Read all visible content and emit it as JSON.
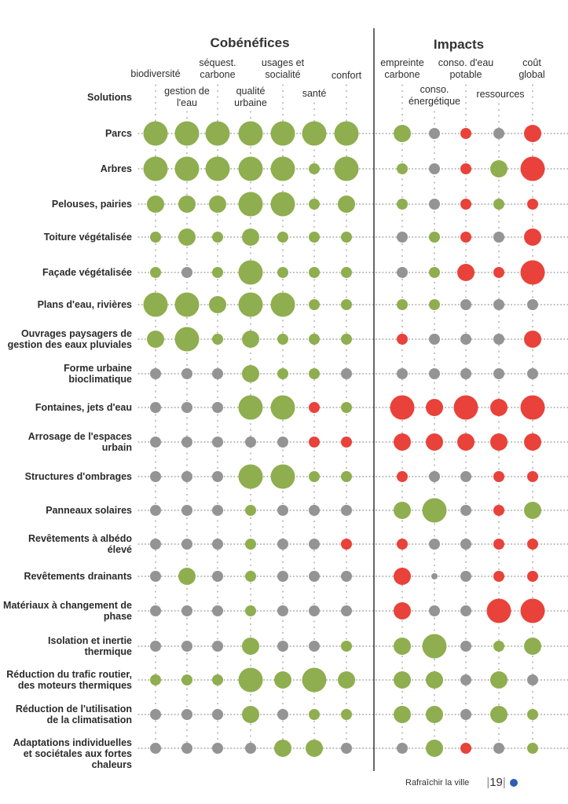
{
  "chart_data": {
    "type": "bubble-matrix",
    "title_left": "Cobénéfices",
    "title_right": "Impacts",
    "row_header": "Solutions",
    "encoding": {
      "color": {
        "g": "positive (green)",
        "n": "neutral (gray)",
        "r": "negative (red)"
      },
      "size": {
        "0": "neutral",
        "1": "low",
        "2": "medium",
        "3": "high"
      }
    },
    "colors": {
      "g": "#8fae4f",
      "n": "#949494",
      "r": "#e8423a"
    },
    "cobenefices_columns": [
      [
        "biodiversité"
      ],
      [
        "gestion de",
        "l'eau"
      ],
      [
        "séquest.",
        "carbone"
      ],
      [
        "qualité",
        "urbaine"
      ],
      [
        "usages et",
        "socialité"
      ],
      [
        "santé"
      ],
      [
        "confort"
      ]
    ],
    "impacts_columns": [
      [
        "empreinte",
        "carbone"
      ],
      [
        "conso.",
        "énergétique"
      ],
      [
        "conso. d'eau",
        "potable"
      ],
      [
        "ressources"
      ],
      [
        "coût",
        "global"
      ]
    ],
    "rows": [
      {
        "label": [
          "Parcs"
        ],
        "cob": [
          [
            "g",
            3
          ],
          [
            "g",
            3
          ],
          [
            "g",
            3
          ],
          [
            "g",
            3
          ],
          [
            "g",
            3
          ],
          [
            "g",
            3
          ],
          [
            "g",
            3
          ]
        ],
        "imp": [
          [
            "g",
            2
          ],
          [
            "n",
            1
          ],
          [
            "r",
            1
          ],
          [
            "n",
            1
          ],
          [
            "r",
            2
          ]
        ]
      },
      {
        "label": [
          "Arbres"
        ],
        "cob": [
          [
            "g",
            3
          ],
          [
            "g",
            3
          ],
          [
            "g",
            3
          ],
          [
            "g",
            3
          ],
          [
            "g",
            3
          ],
          [
            "g",
            1
          ],
          [
            "g",
            3
          ]
        ],
        "imp": [
          [
            "g",
            1
          ],
          [
            "n",
            1
          ],
          [
            "r",
            1
          ],
          [
            "g",
            2
          ],
          [
            "r",
            3
          ]
        ]
      },
      {
        "label": [
          "Pelouses, pairies"
        ],
        "cob": [
          [
            "g",
            2
          ],
          [
            "g",
            2
          ],
          [
            "g",
            2
          ],
          [
            "g",
            3
          ],
          [
            "g",
            3
          ],
          [
            "g",
            1
          ],
          [
            "g",
            2
          ]
        ],
        "imp": [
          [
            "g",
            1
          ],
          [
            "n",
            1
          ],
          [
            "r",
            1
          ],
          [
            "g",
            1
          ],
          [
            "r",
            1
          ]
        ]
      },
      {
        "label": [
          "Toiture végétalisée"
        ],
        "cob": [
          [
            "g",
            1
          ],
          [
            "g",
            2
          ],
          [
            "g",
            1
          ],
          [
            "g",
            2
          ],
          [
            "g",
            1
          ],
          [
            "g",
            1
          ],
          [
            "g",
            1
          ]
        ],
        "imp": [
          [
            "n",
            1
          ],
          [
            "g",
            1
          ],
          [
            "r",
            1
          ],
          [
            "n",
            1
          ],
          [
            "r",
            2
          ]
        ]
      },
      {
        "label": [
          "Façade végétalisée"
        ],
        "cob": [
          [
            "g",
            1
          ],
          [
            "n",
            1
          ],
          [
            "g",
            1
          ],
          [
            "g",
            3
          ],
          [
            "g",
            1
          ],
          [
            "g",
            1
          ],
          [
            "g",
            1
          ]
        ],
        "imp": [
          [
            "n",
            1
          ],
          [
            "g",
            1
          ],
          [
            "r",
            2
          ],
          [
            "r",
            1
          ],
          [
            "r",
            3
          ]
        ]
      },
      {
        "label": [
          "Plans d'eau, rivières"
        ],
        "cob": [
          [
            "g",
            3
          ],
          [
            "g",
            3
          ],
          [
            "g",
            2
          ],
          [
            "g",
            3
          ],
          [
            "g",
            3
          ],
          [
            "g",
            1
          ],
          [
            "g",
            1
          ]
        ],
        "imp": [
          [
            "g",
            1
          ],
          [
            "g",
            1
          ],
          [
            "n",
            1
          ],
          [
            "n",
            1
          ],
          [
            "n",
            1
          ]
        ]
      },
      {
        "label": [
          "Ouvrages paysagers de",
          "gestion des eaux pluviales"
        ],
        "cob": [
          [
            "g",
            2
          ],
          [
            "g",
            3
          ],
          [
            "g",
            1
          ],
          [
            "g",
            2
          ],
          [
            "g",
            1
          ],
          [
            "g",
            1
          ],
          [
            "g",
            1
          ]
        ],
        "imp": [
          [
            "r",
            1
          ],
          [
            "n",
            1
          ],
          [
            "n",
            1
          ],
          [
            "n",
            1
          ],
          [
            "r",
            2
          ]
        ]
      },
      {
        "label": [
          "Forme urbaine",
          "bioclimatique"
        ],
        "cob": [
          [
            "n",
            1
          ],
          [
            "n",
            1
          ],
          [
            "n",
            1
          ],
          [
            "g",
            2
          ],
          [
            "g",
            1
          ],
          [
            "g",
            1
          ],
          [
            "n",
            1
          ]
        ],
        "imp": [
          [
            "n",
            1
          ],
          [
            "n",
            1
          ],
          [
            "n",
            1
          ],
          [
            "n",
            1
          ],
          [
            "n",
            1
          ]
        ]
      },
      {
        "label": [
          "Fontaines, jets d'eau"
        ],
        "cob": [
          [
            "n",
            1
          ],
          [
            "n",
            1
          ],
          [
            "n",
            1
          ],
          [
            "g",
            3
          ],
          [
            "g",
            3
          ],
          [
            "r",
            1
          ],
          [
            "g",
            1
          ]
        ],
        "imp": [
          [
            "r",
            3
          ],
          [
            "r",
            2
          ],
          [
            "r",
            3
          ],
          [
            "r",
            2
          ],
          [
            "r",
            3
          ]
        ]
      },
      {
        "label": [
          "Arrosage de l'espaces",
          "urbain"
        ],
        "cob": [
          [
            "n",
            1
          ],
          [
            "n",
            1
          ],
          [
            "n",
            1
          ],
          [
            "n",
            1
          ],
          [
            "n",
            1
          ],
          [
            "r",
            1
          ],
          [
            "r",
            1
          ]
        ],
        "imp": [
          [
            "r",
            2
          ],
          [
            "r",
            2
          ],
          [
            "r",
            2
          ],
          [
            "r",
            2
          ],
          [
            "r",
            2
          ]
        ]
      },
      {
        "label": [
          "Structures d'ombrages"
        ],
        "cob": [
          [
            "n",
            1
          ],
          [
            "n",
            1
          ],
          [
            "n",
            1
          ],
          [
            "g",
            3
          ],
          [
            "g",
            3
          ],
          [
            "g",
            1
          ],
          [
            "g",
            1
          ]
        ],
        "imp": [
          [
            "r",
            1
          ],
          [
            "n",
            1
          ],
          [
            "n",
            1
          ],
          [
            "r",
            1
          ],
          [
            "r",
            1
          ]
        ]
      },
      {
        "label": [
          "Panneaux solaires"
        ],
        "cob": [
          [
            "n",
            1
          ],
          [
            "n",
            1
          ],
          [
            "n",
            1
          ],
          [
            "g",
            1
          ],
          [
            "n",
            1
          ],
          [
            "n",
            1
          ],
          [
            "n",
            1
          ]
        ],
        "imp": [
          [
            "g",
            2
          ],
          [
            "g",
            3
          ],
          [
            "n",
            1
          ],
          [
            "r",
            1
          ],
          [
            "g",
            2
          ]
        ]
      },
      {
        "label": [
          "Revêtements à albédo",
          "élevé"
        ],
        "cob": [
          [
            "n",
            1
          ],
          [
            "n",
            1
          ],
          [
            "n",
            1
          ],
          [
            "g",
            1
          ],
          [
            "n",
            1
          ],
          [
            "n",
            1
          ],
          [
            "r",
            1
          ]
        ],
        "imp": [
          [
            "r",
            1
          ],
          [
            "n",
            1
          ],
          [
            "n",
            1
          ],
          [
            "r",
            1
          ],
          [
            "r",
            1
          ]
        ]
      },
      {
        "label": [
          "Revêtements drainants"
        ],
        "cob": [
          [
            "n",
            1
          ],
          [
            "g",
            2
          ],
          [
            "n",
            1
          ],
          [
            "g",
            1
          ],
          [
            "n",
            1
          ],
          [
            "n",
            1
          ],
          [
            "n",
            1
          ]
        ],
        "imp": [
          [
            "r",
            2
          ],
          [
            "n",
            0
          ],
          [
            "n",
            1
          ],
          [
            "r",
            1
          ],
          [
            "r",
            1
          ]
        ]
      },
      {
        "label": [
          "Matériaux à changement de",
          "phase"
        ],
        "cob": [
          [
            "n",
            1
          ],
          [
            "n",
            1
          ],
          [
            "n",
            1
          ],
          [
            "g",
            1
          ],
          [
            "n",
            1
          ],
          [
            "n",
            1
          ],
          [
            "n",
            1
          ]
        ],
        "imp": [
          [
            "r",
            2
          ],
          [
            "n",
            1
          ],
          [
            "n",
            1
          ],
          [
            "r",
            3
          ],
          [
            "r",
            3
          ]
        ]
      },
      {
        "label": [
          "Isolation et inertie",
          "thermique"
        ],
        "cob": [
          [
            "n",
            1
          ],
          [
            "n",
            1
          ],
          [
            "n",
            1
          ],
          [
            "g",
            2
          ],
          [
            "n",
            1
          ],
          [
            "n",
            1
          ],
          [
            "g",
            1
          ]
        ],
        "imp": [
          [
            "g",
            2
          ],
          [
            "g",
            3
          ],
          [
            "n",
            1
          ],
          [
            "g",
            1
          ],
          [
            "g",
            2
          ]
        ]
      },
      {
        "label": [
          "Réduction du trafic routier,",
          "des moteurs thermiques"
        ],
        "cob": [
          [
            "g",
            1
          ],
          [
            "g",
            1
          ],
          [
            "g",
            1
          ],
          [
            "g",
            3
          ],
          [
            "g",
            2
          ],
          [
            "g",
            3
          ],
          [
            "g",
            2
          ]
        ],
        "imp": [
          [
            "g",
            2
          ],
          [
            "g",
            2
          ],
          [
            "n",
            1
          ],
          [
            "g",
            2
          ],
          [
            "n",
            1
          ]
        ]
      },
      {
        "label": [
          "Réduction de l'utilisation",
          "de la climatisation"
        ],
        "cob": [
          [
            "n",
            1
          ],
          [
            "n",
            1
          ],
          [
            "n",
            1
          ],
          [
            "g",
            2
          ],
          [
            "n",
            1
          ],
          [
            "g",
            1
          ],
          [
            "g",
            1
          ]
        ],
        "imp": [
          [
            "g",
            2
          ],
          [
            "g",
            2
          ],
          [
            "n",
            1
          ],
          [
            "g",
            2
          ],
          [
            "g",
            1
          ]
        ]
      },
      {
        "label": [
          "Adaptations individuelles",
          "et sociétales aux fortes",
          "chaleurs"
        ],
        "cob": [
          [
            "n",
            1
          ],
          [
            "n",
            1
          ],
          [
            "n",
            1
          ],
          [
            "n",
            1
          ],
          [
            "g",
            2
          ],
          [
            "g",
            2
          ],
          [
            "n",
            1
          ]
        ],
        "imp": [
          [
            "n",
            1
          ],
          [
            "g",
            2
          ],
          [
            "r",
            1
          ],
          [
            "n",
            1
          ],
          [
            "g",
            1
          ]
        ]
      }
    ]
  },
  "footer": {
    "publication": "Rafraîchir la ville",
    "page_number": "19",
    "separator": "|"
  }
}
